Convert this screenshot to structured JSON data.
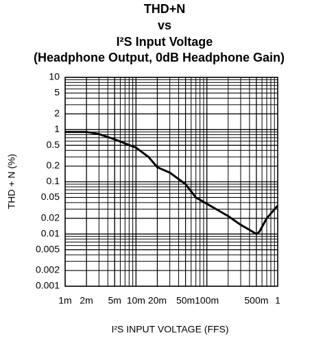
{
  "chart_data": {
    "type": "line",
    "title_lines": [
      "THD+N",
      "vs",
      "I²S Input Voltage",
      "(Headphone Output, 0dB Headphone Gain)"
    ],
    "x_label": "I²S INPUT VOLTAGE (FFS)",
    "y_label": "THD + N (%)",
    "log_x": true,
    "log_y": true,
    "grid": true,
    "minor_grid": true,
    "x": [
      0.001,
      0.002,
      0.003,
      0.005,
      0.01,
      0.015,
      0.02,
      0.03,
      0.05,
      0.07,
      0.1,
      0.2,
      0.3,
      0.4,
      0.5,
      0.55,
      0.7,
      1
    ],
    "series": [
      {
        "color": "#000000",
        "values": [
          0.9,
          0.9,
          0.82,
          0.65,
          0.45,
          0.3,
          0.19,
          0.15,
          0.09,
          0.05,
          0.038,
          0.022,
          0.015,
          0.012,
          0.01,
          0.011,
          0.02,
          0.035
        ]
      }
    ],
    "xlim": [
      0.001,
      1
    ],
    "ylim": [
      0.001,
      10
    ],
    "xticks": [
      {
        "value": 0.001,
        "label": "1m"
      },
      {
        "value": 0.002,
        "label": "2m"
      },
      {
        "value": 0.005,
        "label": "5m"
      },
      {
        "value": 0.01,
        "label": "10m"
      },
      {
        "value": 0.02,
        "label": "20m"
      },
      {
        "value": 0.05,
        "label": "50m"
      },
      {
        "value": 0.1,
        "label": "100m"
      },
      {
        "value": 0.5,
        "label": "500m"
      },
      1
    ],
    "yticks": [
      10,
      5,
      2,
      1,
      0.5,
      0.2,
      0.1,
      0.05,
      0.02,
      0.01,
      0.005,
      0.002,
      0.001
    ]
  }
}
